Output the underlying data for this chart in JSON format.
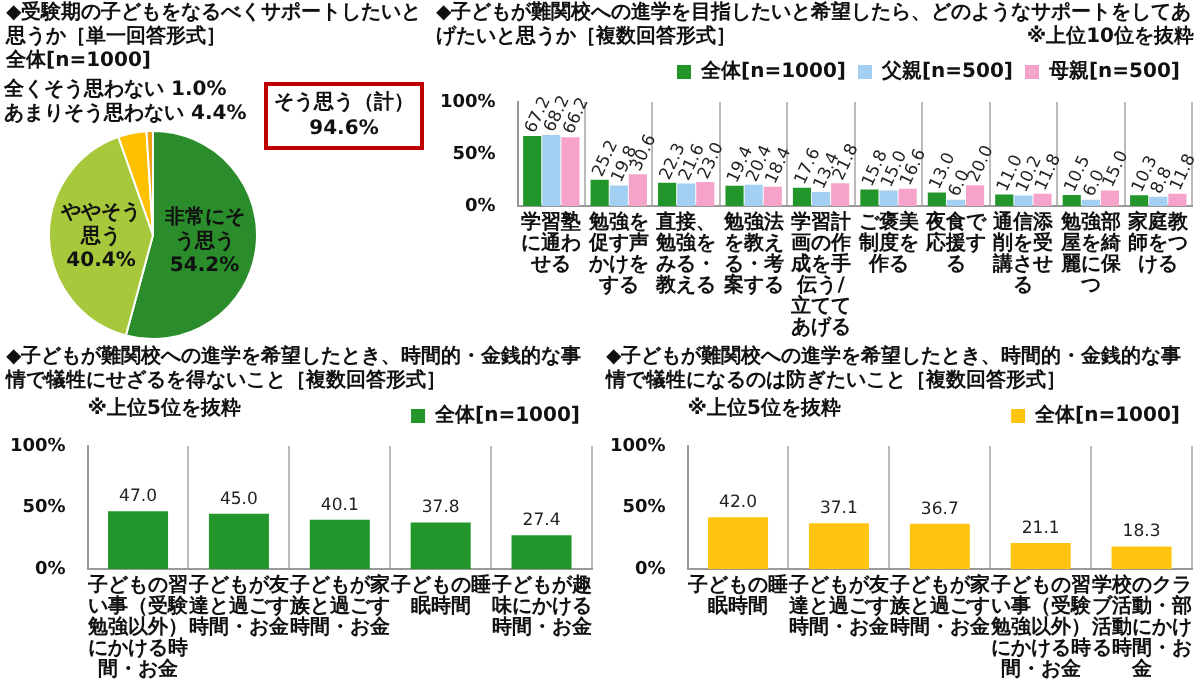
{
  "chart_data": [
    {
      "type": "pie",
      "title": "◆受験期の子どもをなるべくサポートしたいと思うか［単一回答形式］",
      "subtitle": "全体[n=1000]",
      "categories": [
        "非常にそう思う",
        "ややそう思う",
        "あまりそう思わない",
        "全くそう思わない"
      ],
      "values": [
        54.2,
        40.4,
        4.4,
        1.0
      ],
      "colors": [
        "#2a8c2a",
        "#a6c83a",
        "#ffc000",
        "#e9a21a"
      ],
      "value_labels": [
        "54.2%",
        "40.4%",
        "4.4%",
        "1.0%"
      ],
      "annotations": [
        "そう思う（計）",
        "94.6%"
      ]
    },
    {
      "type": "bar",
      "title": "◆子どもが難関校への進学を目指したいと希望したら、どのようなサポートをしてあげたいと思うか［複数回答形式］",
      "annotations": [
        "※上位10位を抜粋"
      ],
      "categories": [
        "学習塾に通わせる",
        "勉強を促す声かけをする",
        "直接、勉強をみる・教える",
        "勉強法を教える・考案する",
        "学習計画の作成を手伝う/立ててあげる",
        "ご褒美制度を作る",
        "夜食で応援する",
        "通信添削を受講させる",
        "勉強部屋を綺麗に保つ",
        "家庭教師をつける"
      ],
      "series": [
        {
          "name": "全体[n=1000]",
          "color": "#22962a",
          "values": [
            67.2,
            25.2,
            22.3,
            19.4,
            17.6,
            15.8,
            13.0,
            11.0,
            10.5,
            10.3
          ],
          "value_labels": [
            "67.2",
            "25.2",
            "22.3",
            "19.4",
            "17.6",
            "15.8",
            "13.0",
            "11.0",
            "10.5",
            "10.3"
          ]
        },
        {
          "name": "父親[n=500]",
          "color": "#a3d0f2",
          "values": [
            68.2,
            19.8,
            21.6,
            20.4,
            13.4,
            15.0,
            6.0,
            10.2,
            6.0,
            8.8
          ],
          "value_labels": [
            "68.2",
            "19.8",
            "21.6",
            "20.4",
            "13.4",
            "15.0",
            "6.0",
            "10.2",
            "6.0",
            "8.8"
          ]
        },
        {
          "name": "母親[n=500]",
          "color": "#f5a3c9",
          "values": [
            66.2,
            30.6,
            23.0,
            18.4,
            21.8,
            16.6,
            20.0,
            11.8,
            15.0,
            11.8
          ],
          "value_labels": [
            "66.2",
            "30.6",
            "23.0",
            "18.4",
            "21.8",
            "16.6",
            "20.0",
            "11.8",
            "15.0",
            "11.8"
          ]
        }
      ],
      "ylim": [
        0,
        100
      ],
      "yticks": [
        {
          "value": 0,
          "label": "0%"
        },
        {
          "value": 50,
          "label": "50%"
        },
        {
          "value": 100,
          "label": "100%"
        }
      ],
      "grid": "x",
      "legend": "top right"
    },
    {
      "type": "bar",
      "title": "◆子どもが難関校への進学を希望したとき、時間的・金銭的な事情で犠牲にせざるを得ないこと［複数回答形式］",
      "annotations": [
        "※上位5位を抜粋"
      ],
      "categories": [
        "子どもの習い事（受験勉強以外）にかける時間・お金",
        "子どもが友達と過ごす時間・お金",
        "子どもが家族と過ごす時間・お金",
        "子どもの睡眠時間",
        "子どもが趣味にかける時間・お金"
      ],
      "series": [
        {
          "name": "全体[n=1000]",
          "color": "#22962a",
          "values": [
            47.0,
            45.0,
            40.1,
            37.8,
            27.4
          ],
          "value_labels": [
            "47.0",
            "45.0",
            "40.1",
            "37.8",
            "27.4"
          ]
        }
      ],
      "ylim": [
        0,
        100
      ],
      "yticks": [
        {
          "value": 0,
          "label": "0%"
        },
        {
          "value": 50,
          "label": "50%"
        },
        {
          "value": 100,
          "label": "100%"
        }
      ],
      "grid": "x",
      "legend": "top right"
    },
    {
      "type": "bar",
      "title": "◆子どもが難関校への進学を希望したとき、時間的・金銭的な事情で犠牲になるのは防ぎたいこと［複数回答形式］",
      "annotations": [
        "※上位5位を抜粋"
      ],
      "categories": [
        "子どもの睡眠時間",
        "子どもが友達と過ごす時間・お金",
        "子どもが家族と過ごす時間・お金",
        "子どもの習い事（受験勉強以外）にかける時間・お金",
        "学校のクラブ活動・部活動にかける時間・お金"
      ],
      "series": [
        {
          "name": "全体[n=1000]",
          "color": "#ffc40f",
          "values": [
            42.0,
            37.1,
            36.7,
            21.1,
            18.3
          ],
          "value_labels": [
            "42.0",
            "37.1",
            "36.7",
            "21.1",
            "18.3"
          ]
        }
      ],
      "ylim": [
        0,
        100
      ],
      "yticks": [
        {
          "value": 0,
          "label": "0%"
        },
        {
          "value": 50,
          "label": "50%"
        },
        {
          "value": 100,
          "label": "100%"
        }
      ],
      "grid": "x",
      "legend": "top right"
    }
  ]
}
